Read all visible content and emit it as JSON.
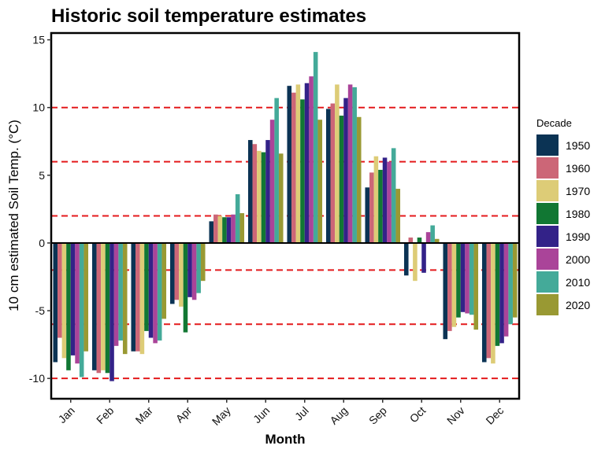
{
  "chart_data": {
    "type": "bar",
    "title": "Historic soil temperature estimates",
    "xlabel": "Month",
    "ylabel": "10 cm estimated Soil Temp. (°C)",
    "ylim": [
      -11.5,
      15.5
    ],
    "yticks": [
      -10,
      -5,
      0,
      5,
      10,
      15
    ],
    "categories": [
      "Jan",
      "Feb",
      "Mar",
      "Apr",
      "May",
      "Jun",
      "Jul",
      "Aug",
      "Sep",
      "Oct",
      "Nov",
      "Dec"
    ],
    "legend_title": "Decade",
    "legend_position": "right",
    "reference_lines": [
      -10,
      -6,
      -2,
      2,
      6,
      10
    ],
    "reference_line_color": "#e41a1c",
    "series": [
      {
        "name": "1950",
        "color": "#0b3354",
        "values": [
          -8.8,
          -9.4,
          -8.0,
          -4.5,
          1.6,
          7.6,
          11.6,
          9.9,
          4.1,
          -2.4,
          -7.1,
          -8.8
        ]
      },
      {
        "name": "1960",
        "color": "#cc6677",
        "values": [
          -7.0,
          -9.6,
          -8.0,
          -4.2,
          2.1,
          7.3,
          11.1,
          10.3,
          5.2,
          0.4,
          -6.5,
          -8.5
        ]
      },
      {
        "name": "1970",
        "color": "#ddcc77",
        "values": [
          -8.5,
          -9.4,
          -8.2,
          -4.7,
          2.0,
          6.8,
          11.7,
          11.7,
          6.4,
          -2.8,
          -6.2,
          -8.9
        ]
      },
      {
        "name": "1980",
        "color": "#117733",
        "values": [
          -9.4,
          -9.6,
          -6.5,
          -6.6,
          1.9,
          6.7,
          10.6,
          9.4,
          5.4,
          0.4,
          -5.5,
          -7.6
        ]
      },
      {
        "name": "1990",
        "color": "#332288",
        "values": [
          -8.3,
          -10.2,
          -7.0,
          -4.0,
          1.9,
          7.6,
          11.8,
          10.7,
          6.3,
          -2.2,
          -5.1,
          -7.4
        ]
      },
      {
        "name": "2000",
        "color": "#aa4499",
        "values": [
          -8.9,
          -7.6,
          -7.4,
          -4.2,
          2.1,
          9.1,
          12.3,
          11.7,
          6.0,
          0.8,
          -5.2,
          -6.9
        ]
      },
      {
        "name": "2010",
        "color": "#44aa99",
        "values": [
          -9.9,
          -7.2,
          -7.2,
          -3.7,
          3.6,
          10.7,
          14.1,
          11.5,
          7.0,
          1.3,
          -5.3,
          -6.0
        ]
      },
      {
        "name": "2020",
        "color": "#999933",
        "values": [
          -8.0,
          -8.2,
          -5.6,
          -2.8,
          2.2,
          6.6,
          9.1,
          9.3,
          4.0,
          0.3,
          -6.4,
          -5.5
        ]
      }
    ]
  }
}
